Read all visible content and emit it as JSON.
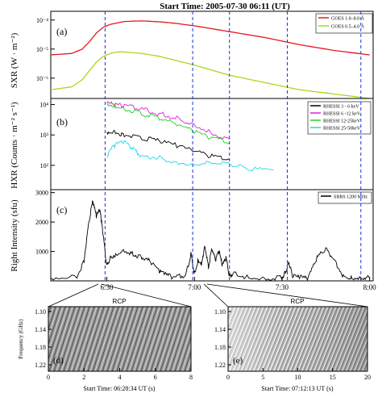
{
  "figure": {
    "title": "Start Time: 2005-07-30 06:11 (UT)",
    "vlines_hours": [
      6.49,
      6.99,
      7.2,
      7.53,
      7.95
    ]
  },
  "chart_data": [
    {
      "type": "line",
      "panel": "(a)",
      "ylabel": "SXR (W · m⁻²)",
      "yscale": "log",
      "ylim_exp": [
        -6.7,
        -3.7
      ],
      "yticks": [
        "10⁻⁴",
        "10⁻⁵",
        "10⁻⁶"
      ],
      "xlim_hours": [
        6.18,
        8.02
      ],
      "series": [
        {
          "name": "GOES 1.0–8.0 Å",
          "color": "#e8141c",
          "x": [
            6.18,
            6.3,
            6.36,
            6.4,
            6.44,
            6.48,
            6.52,
            6.56,
            6.6,
            6.7,
            6.8,
            6.9,
            7.0,
            7.2,
            7.4,
            7.6,
            7.8,
            8.0
          ],
          "y": [
            -5.2,
            -5.15,
            -5.0,
            -4.75,
            -4.45,
            -4.25,
            -4.15,
            -4.1,
            -4.05,
            -4.03,
            -4.06,
            -4.12,
            -4.2,
            -4.4,
            -4.6,
            -4.85,
            -5.05,
            -5.2
          ]
        },
        {
          "name": "GOES 0.5–4.0 Å",
          "color": "#a6d81c",
          "x": [
            6.18,
            6.3,
            6.36,
            6.4,
            6.44,
            6.48,
            6.52,
            6.56,
            6.6,
            6.7,
            6.8,
            6.9,
            7.0,
            7.2,
            7.4,
            7.6,
            7.8,
            8.0
          ],
          "y": [
            -6.4,
            -6.3,
            -6.05,
            -5.75,
            -5.45,
            -5.25,
            -5.15,
            -5.1,
            -5.1,
            -5.15,
            -5.25,
            -5.4,
            -5.55,
            -5.9,
            -6.15,
            -6.4,
            -6.55,
            -6.7
          ]
        }
      ]
    },
    {
      "type": "line",
      "panel": "(b)",
      "ylabel": "HXR (Counts · m⁻² s⁻¹)",
      "yscale": "log",
      "ylim_exp": [
        1.2,
        4.2
      ],
      "yticks": [
        "10⁴",
        "10³",
        "10²"
      ],
      "series": [
        {
          "name": "RHESSI 3 - 6 keV",
          "color": "#000000",
          "x": [
            6.5,
            6.55,
            6.6,
            6.7,
            6.8,
            6.9,
            7.0,
            7.1,
            7.2
          ],
          "y": [
            3.1,
            3.1,
            3.0,
            2.9,
            2.8,
            2.65,
            2.45,
            2.3,
            2.2
          ]
        },
        {
          "name": "RHESSI 6 -12 keV",
          "color": "#e020e0",
          "x": [
            6.5,
            6.55,
            6.6,
            6.7,
            6.8,
            6.9,
            7.0,
            7.1,
            7.2
          ],
          "y": [
            4.05,
            4.0,
            3.95,
            3.85,
            3.7,
            3.55,
            3.35,
            3.05,
            2.85
          ]
        },
        {
          "name": "RHESSI 12-25keV",
          "color": "#20d020",
          "x": [
            6.5,
            6.55,
            6.6,
            6.7,
            6.8,
            6.9,
            7.0,
            7.1,
            7.2
          ],
          "y": [
            4.05,
            3.95,
            3.85,
            3.7,
            3.55,
            3.35,
            3.1,
            2.9,
            2.75
          ]
        },
        {
          "name": "RHESSI 25-50keV",
          "color": "#20d8e8",
          "x": [
            6.5,
            6.55,
            6.6,
            6.65,
            6.7,
            6.8,
            6.9,
            7.0,
            7.1,
            7.2,
            7.3,
            7.45
          ],
          "y": [
            2.3,
            2.7,
            2.75,
            2.55,
            2.3,
            2.25,
            2.1,
            2.05,
            2.1,
            2.05,
            1.9,
            1.85
          ]
        }
      ]
    },
    {
      "type": "line",
      "panel": "(c)",
      "ylabel": "Right Intensity (sfu)",
      "ylim": [
        0,
        3100
      ],
      "yticks": [
        1000,
        2000,
        3000
      ],
      "xticks": [
        "6:30",
        "7:00",
        "7:30",
        "8:00"
      ],
      "xticks_hours": [
        6.5,
        7.0,
        7.5,
        8.0
      ],
      "series": [
        {
          "name": "SBRS 1200 MHz",
          "color": "#000000",
          "x": [
            6.18,
            6.33,
            6.37,
            6.4,
            6.42,
            6.44,
            6.46,
            6.47,
            6.48,
            6.5,
            6.52,
            6.55,
            6.6,
            6.65,
            6.7,
            6.75,
            6.8,
            6.83,
            6.88,
            6.95,
            6.98,
            7.0,
            7.02,
            7.04,
            7.06,
            7.08,
            7.1,
            7.12,
            7.14,
            7.16,
            7.18,
            7.2,
            7.22,
            7.3,
            7.4,
            7.5,
            7.52,
            7.54,
            7.56,
            7.6,
            7.65,
            7.7,
            7.75,
            7.8,
            7.85,
            7.9,
            7.95,
            8.0
          ],
          "y": [
            100,
            150,
            700,
            2100,
            2700,
            2200,
            2400,
            2000,
            1500,
            500,
            800,
            900,
            1050,
            900,
            800,
            650,
            350,
            220,
            120,
            200,
            900,
            250,
            700,
            600,
            1200,
            450,
            1100,
            700,
            1000,
            500,
            800,
            150,
            250,
            120,
            100,
            100,
            300,
            600,
            150,
            120,
            100,
            800,
            1100,
            700,
            150,
            120,
            100,
            100
          ]
        }
      ]
    },
    {
      "type": "heatmap",
      "panel": "(d)",
      "title": "RCP",
      "xlabel": "Start Time: 06:28:34 UT (s)",
      "ylabel": "Frequency (GHz)",
      "xlim": [
        0,
        8
      ],
      "xticks": [
        0,
        2,
        4,
        6,
        8
      ],
      "ylim": [
        1.1,
        1.22
      ],
      "yticks": [
        "1.10",
        "1.14",
        "1.18",
        "1.22"
      ]
    },
    {
      "type": "heatmap",
      "panel": "(e)",
      "title": "RCP",
      "xlabel": "Start Time: 07:12:13 UT (s)",
      "xlim": [
        0,
        20
      ],
      "xticks": [
        0,
        5,
        10,
        15,
        20
      ],
      "ylim": [
        1.1,
        1.22
      ],
      "yticks": [
        "1.10",
        "1.14",
        "1.18",
        "1.22"
      ]
    }
  ]
}
